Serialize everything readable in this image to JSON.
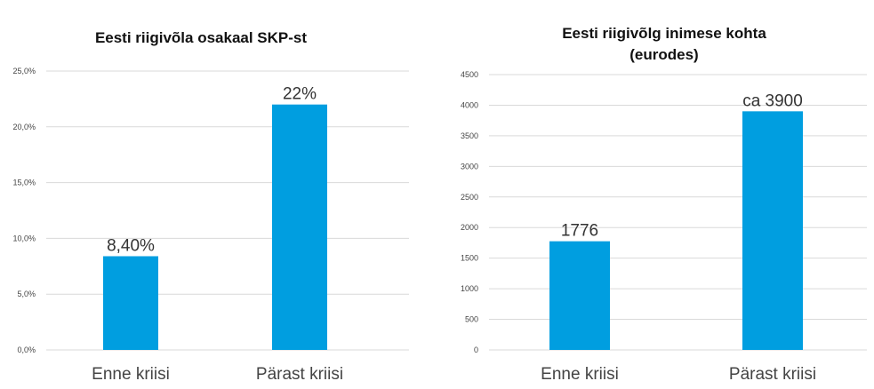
{
  "colors": {
    "bar": "#009ee0",
    "grid": "#d9d9d9",
    "text": "#444444"
  },
  "chart_data": [
    {
      "type": "bar",
      "title_lines": [
        "Eesti riigivõla osakaal SKP-st"
      ],
      "categories": [
        "Enne kriisi",
        "Pärast kriisi"
      ],
      "values": [
        8.4,
        22
      ],
      "data_labels": [
        "8,40%",
        "22%"
      ],
      "yticks": [
        "0,0%",
        "5,0%",
        "10,0%",
        "15,0%",
        "20,0%",
        "25,0%"
      ],
      "ylim": [
        0,
        25
      ],
      "grid": true
    },
    {
      "type": "bar",
      "title_lines": [
        "Eesti riigivõlg inimese kohta",
        "(eurodes)"
      ],
      "categories": [
        "Enne kriisi",
        "Pärast kriisi"
      ],
      "values": [
        1776,
        3900
      ],
      "data_labels": [
        "1776",
        "ca 3900"
      ],
      "yticks": [
        "0",
        "500",
        "1000",
        "1500",
        "2000",
        "2500",
        "3000",
        "3500",
        "4000",
        "4500"
      ],
      "ylim": [
        0,
        4500
      ],
      "grid": true
    }
  ]
}
